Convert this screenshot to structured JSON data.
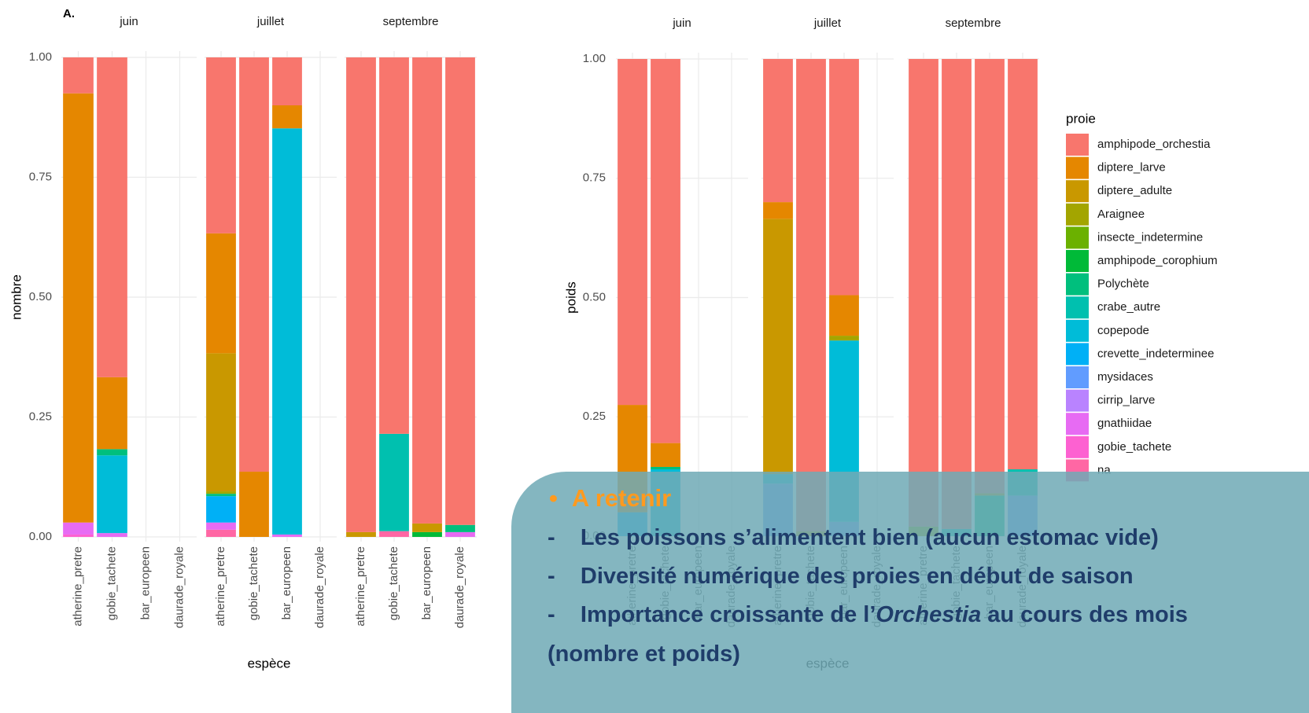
{
  "chart_data": [
    {
      "type": "bar",
      "stacked": true,
      "label": "A.",
      "ylabel": "nombre",
      "xlabel": "espèce",
      "facets": [
        "juin",
        "juillet",
        "septembre"
      ],
      "categories": [
        "atherine_pretre",
        "gobie_tachete",
        "bar_europeen",
        "daurade_royale"
      ],
      "ylim": [
        0,
        1
      ],
      "yticks": [
        {
          "value": 0,
          "label": "0.00"
        },
        0.25,
        {
          "value": 0.5,
          "label": "0.50"
        },
        0.75,
        {
          "value": 1,
          "label": "1.00"
        }
      ],
      "grid": true,
      "series": [
        {
          "values": [
            [
              0.075,
              0.667,
              null,
              null
            ],
            [
              0.367,
              0.864,
              0.1,
              null
            ],
            [
              0.99,
              0.785,
              0.972,
              0.975
            ]
          ]
        },
        {
          "values": [
            [
              0.895,
              0.15,
              null,
              null
            ],
            [
              0.25,
              0.136,
              0.048,
              null
            ],
            [
              null,
              null,
              null,
              null
            ]
          ]
        },
        {
          "values": [
            [
              null,
              null,
              null,
              null
            ],
            [
              0.288,
              null,
              null,
              null
            ],
            [
              0.01,
              null,
              0.018,
              null
            ]
          ]
        },
        {
          "values": [
            [
              null,
              null,
              null,
              null
            ],
            [
              0.005,
              null,
              null,
              null
            ],
            [
              null,
              null,
              null,
              null
            ]
          ]
        },
        {
          "values": [
            [
              null,
              null,
              null,
              null
            ],
            [
              null,
              null,
              null,
              null
            ],
            [
              null,
              null,
              null,
              null
            ]
          ]
        },
        {
          "values": [
            [
              null,
              null,
              null,
              null
            ],
            [
              null,
              null,
              null,
              null
            ],
            [
              null,
              null,
              0.01,
              null
            ]
          ]
        },
        {
          "values": [
            [
              null,
              0.013,
              null,
              null
            ],
            [
              0.005,
              null,
              null,
              null
            ],
            [
              null,
              null,
              null,
              0.015
            ]
          ]
        },
        {
          "values": [
            [
              null,
              null,
              null,
              null
            ],
            [
              null,
              null,
              null,
              null
            ],
            [
              null,
              0.203,
              null,
              null
            ]
          ]
        },
        {
          "values": [
            [
              null,
              0.162,
              null,
              null
            ],
            [
              null,
              null,
              0.847,
              null
            ],
            [
              null,
              null,
              null,
              null
            ]
          ]
        },
        {
          "values": [
            [
              null,
              null,
              null,
              null
            ],
            [
              0.055,
              null,
              null,
              null
            ],
            [
              null,
              null,
              null,
              null
            ]
          ]
        },
        {
          "values": [
            [
              null,
              null,
              null,
              null
            ],
            [
              null,
              null,
              null,
              null
            ],
            [
              null,
              null,
              null,
              null
            ]
          ]
        },
        {
          "values": [
            [
              null,
              null,
              null,
              null
            ],
            [
              null,
              null,
              null,
              null
            ],
            [
              null,
              null,
              null,
              null
            ]
          ]
        },
        {
          "values": [
            [
              0.025,
              0.008,
              null,
              null
            ],
            [
              0.015,
              null,
              0.005,
              null
            ],
            [
              null,
              null,
              null,
              0.01
            ]
          ]
        },
        {
          "values": [
            [
              0.005,
              null,
              null,
              null
            ],
            [
              null,
              null,
              null,
              null
            ],
            [
              null,
              null,
              null,
              null
            ]
          ]
        },
        {
          "values": [
            [
              null,
              null,
              null,
              null
            ],
            [
              0.015,
              null,
              null,
              null
            ],
            [
              null,
              0.012,
              null,
              null
            ]
          ]
        }
      ]
    },
    {
      "type": "bar",
      "stacked": true,
      "ylabel": "poids",
      "xlabel": "espèce",
      "legend_title": "proie",
      "facets": [
        "juin",
        "juillet",
        "septembre"
      ],
      "categories": [
        "atherine_pretre",
        "gobie_tachete",
        "bar_europeen",
        "daurade_royale"
      ],
      "ylim": [
        0,
        1
      ],
      "yticks": [
        {
          "value": 0,
          "label": "0.00"
        },
        0.25,
        {
          "value": 0.5,
          "label": "0.50"
        },
        0.75,
        {
          "value": 1,
          "label": "1.00"
        }
      ],
      "grid": true,
      "series": [
        {
          "name": "amphipode_orchestia",
          "color": "#F8766D",
          "values": [
            [
              0.725,
              0.805,
              null,
              null
            ],
            [
              0.3,
              0.99,
              0.495,
              null
            ],
            [
              0.98,
              0.985,
              0.91,
              0.86
            ]
          ]
        },
        {
          "name": "diptere_larve",
          "color": "#E58700",
          "values": [
            [
              0.225,
              0.05,
              null,
              null
            ],
            [
              0.035,
              null,
              0.085,
              null
            ],
            [
              null,
              null,
              null,
              null
            ]
          ]
        },
        {
          "name": "diptere_adulte",
          "color": "#C99800",
          "values": [
            [
              null,
              null,
              null,
              null
            ],
            [
              0.535,
              0.01,
              null,
              null
            ],
            [
              null,
              null,
              0.005,
              null
            ]
          ]
        },
        {
          "name": "Araignee",
          "color": "#A3A500",
          "values": [
            [
              null,
              null,
              null,
              null
            ],
            [
              null,
              null,
              0.01,
              null
            ],
            [
              0.02,
              null,
              null,
              null
            ]
          ]
        },
        {
          "name": "insecte_indetermine",
          "color": "#6BB100",
          "values": [
            [
              null,
              null,
              null,
              null
            ],
            [
              null,
              null,
              null,
              null
            ],
            [
              null,
              null,
              null,
              null
            ]
          ]
        },
        {
          "name": "amphipode_corophium",
          "color": "#00BA38",
          "values": [
            [
              null,
              null,
              null,
              null
            ],
            [
              null,
              null,
              null,
              null
            ],
            [
              null,
              null,
              null,
              null
            ]
          ]
        },
        {
          "name": "Polychète",
          "color": "#00BF7D",
          "values": [
            [
              null,
              0.005,
              null,
              null
            ],
            [
              null,
              null,
              null,
              null
            ],
            [
              null,
              null,
              0.085,
              null
            ]
          ]
        },
        {
          "name": "crabe_autre",
          "color": "#00C0AF",
          "values": [
            [
              null,
              null,
              null,
              null
            ],
            [
              null,
              null,
              null,
              null
            ],
            [
              null,
              0.015,
              null,
              0.055
            ]
          ]
        },
        {
          "name": "copepode",
          "color": "#00BCD8",
          "values": [
            [
              null,
              0.14,
              null,
              null
            ],
            [
              0.02,
              null,
              0.38,
              null
            ],
            [
              null,
              null,
              null,
              null
            ]
          ]
        },
        {
          "name": "crevette_indeterminee",
          "color": "#00B0F6",
          "values": [
            [
              0.05,
              null,
              null,
              null
            ],
            [
              null,
              null,
              null,
              null
            ],
            [
              null,
              null,
              null,
              null
            ]
          ]
        },
        {
          "name": "mysidaces",
          "color": "#619CFF",
          "values": [
            [
              null,
              null,
              null,
              null
            ],
            [
              0.11,
              null,
              0.03,
              null
            ],
            [
              null,
              null,
              null,
              0.085
            ]
          ]
        },
        {
          "name": "cirrip_larve",
          "color": "#B983FF",
          "values": [
            [
              null,
              null,
              null,
              null
            ],
            [
              null,
              null,
              null,
              null
            ],
            [
              null,
              null,
              null,
              null
            ]
          ]
        },
        {
          "name": "gnathiidae",
          "color": "#E76BF3",
          "values": [
            [
              null,
              null,
              null,
              null
            ],
            [
              null,
              null,
              null,
              null
            ],
            [
              null,
              null,
              null,
              null
            ]
          ]
        },
        {
          "name": "gobie_tachete",
          "color": "#FD61D1",
          "values": [
            [
              null,
              null,
              null,
              null
            ],
            [
              null,
              null,
              null,
              null
            ],
            [
              null,
              null,
              null,
              null
            ]
          ]
        },
        {
          "name": "na",
          "color": "#FF67A4",
          "values": [
            [
              null,
              null,
              null,
              null
            ],
            [
              null,
              null,
              null,
              null
            ],
            [
              null,
              null,
              null,
              null
            ]
          ]
        }
      ]
    }
  ],
  "note": {
    "heading": "A retenir",
    "lines": [
      "Les poissons s’alimentent bien (aucun estomac vide)",
      "Diversité numérique des proies en début de saison"
    ],
    "last": {
      "before": "Importance croissante de l’",
      "italic": "Orchestia",
      "after": " au cours des mois",
      "continuation": "(nombre et poids)"
    }
  }
}
